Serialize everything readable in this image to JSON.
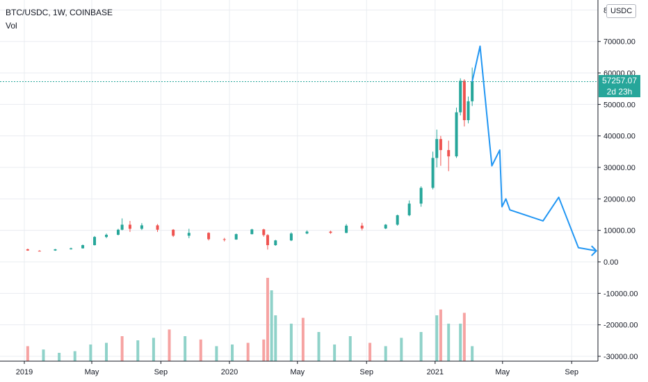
{
  "header": {
    "symbol": "BTC/USDC, 1W, COINBASE",
    "volume_label": "Vol",
    "currency": "USDC"
  },
  "last_price": {
    "value": "57257.07",
    "countdown": "2d 23h"
  },
  "colors": {
    "up": "#26a69a",
    "down": "#ef5350",
    "vol_up": "#8fd2c9",
    "vol_down": "#f6a3a2",
    "projection": "#2196f3",
    "grid": "#e9ecf1",
    "price_line": "#26a69a"
  },
  "chart_data": {
    "type": "candlestick",
    "title": "BTC/USDC, 1W, COINBASE",
    "x_axis": {
      "ticks": [
        "2019",
        "May",
        "Sep",
        "2020",
        "May",
        "Sep",
        "2021",
        "May",
        "Sep"
      ]
    },
    "y_axis": {
      "range": [
        -30000,
        80000
      ],
      "ticks": [
        "70000.00",
        "60000.00",
        "50000.00",
        "40000.00",
        "30000.00",
        "20000.00",
        "10000.00",
        "0.00",
        "-10000.00",
        "-20000.00",
        "-30000.00"
      ],
      "partial_top_tick": "80000.00"
    },
    "grid": true,
    "candles": [
      {
        "t": "2019-01-07",
        "o": 4000,
        "h": 4200,
        "l": 3500,
        "c": 3600
      },
      {
        "t": "2019-01-28",
        "o": 3500,
        "h": 3700,
        "l": 3300,
        "c": 3400
      },
      {
        "t": "2019-02-25",
        "o": 3600,
        "h": 4100,
        "l": 3500,
        "c": 4000
      },
      {
        "t": "2019-03-25",
        "o": 4000,
        "h": 4500,
        "l": 3900,
        "c": 4300
      },
      {
        "t": "2019-04-15",
        "o": 4300,
        "h": 5500,
        "l": 4200,
        "c": 5300
      },
      {
        "t": "2019-05-06",
        "o": 5300,
        "h": 8200,
        "l": 5200,
        "c": 7900
      },
      {
        "t": "2019-05-27",
        "o": 7900,
        "h": 9000,
        "l": 7500,
        "c": 8600
      },
      {
        "t": "2019-06-17",
        "o": 8600,
        "h": 10500,
        "l": 8400,
        "c": 10200
      },
      {
        "t": "2019-06-24",
        "o": 10200,
        "h": 13800,
        "l": 10000,
        "c": 11800
      },
      {
        "t": "2019-07-08",
        "o": 11800,
        "h": 13000,
        "l": 9500,
        "c": 10500
      },
      {
        "t": "2019-07-29",
        "o": 10500,
        "h": 12300,
        "l": 10100,
        "c": 11600
      },
      {
        "t": "2019-08-26",
        "o": 11600,
        "h": 12000,
        "l": 9500,
        "c": 10200
      },
      {
        "t": "2019-09-23",
        "o": 10200,
        "h": 10400,
        "l": 7900,
        "c": 8300
      },
      {
        "t": "2019-10-21",
        "o": 8300,
        "h": 10500,
        "l": 7500,
        "c": 9200
      },
      {
        "t": "2019-11-25",
        "o": 9200,
        "h": 9400,
        "l": 6800,
        "c": 7200
      },
      {
        "t": "2019-12-23",
        "o": 7200,
        "h": 7600,
        "l": 6500,
        "c": 7100
      },
      {
        "t": "2020-01-13",
        "o": 7100,
        "h": 9000,
        "l": 7000,
        "c": 8800
      },
      {
        "t": "2020-02-10",
        "o": 8800,
        "h": 10500,
        "l": 8700,
        "c": 10300
      },
      {
        "t": "2020-03-02",
        "o": 10300,
        "h": 10500,
        "l": 8000,
        "c": 8500
      },
      {
        "t": "2020-03-09",
        "o": 8500,
        "h": 8800,
        "l": 3900,
        "c": 5300
      },
      {
        "t": "2020-03-23",
        "o": 5300,
        "h": 7000,
        "l": 5100,
        "c": 6800
      },
      {
        "t": "2020-04-20",
        "o": 6800,
        "h": 9400,
        "l": 6600,
        "c": 9000
      },
      {
        "t": "2020-05-18",
        "o": 9000,
        "h": 10000,
        "l": 8800,
        "c": 9600
      },
      {
        "t": "2020-06-29",
        "o": 9600,
        "h": 9900,
        "l": 8900,
        "c": 9200
      },
      {
        "t": "2020-07-27",
        "o": 9200,
        "h": 12000,
        "l": 9100,
        "c": 11500
      },
      {
        "t": "2020-08-24",
        "o": 11500,
        "h": 12400,
        "l": 10000,
        "c": 10600
      },
      {
        "t": "2020-10-05",
        "o": 10600,
        "h": 12000,
        "l": 10400,
        "c": 11800
      },
      {
        "t": "2020-10-26",
        "o": 11800,
        "h": 15000,
        "l": 11500,
        "c": 14800
      },
      {
        "t": "2020-11-16",
        "o": 14800,
        "h": 19500,
        "l": 14500,
        "c": 18500
      },
      {
        "t": "2020-12-07",
        "o": 18500,
        "h": 24000,
        "l": 17500,
        "c": 23500
      },
      {
        "t": "2020-12-28",
        "o": 23500,
        "h": 35000,
        "l": 23000,
        "c": 33000
      },
      {
        "t": "2021-01-04",
        "o": 33000,
        "h": 42000,
        "l": 30000,
        "c": 39000
      },
      {
        "t": "2021-01-11",
        "o": 39000,
        "h": 40000,
        "l": 30500,
        "c": 35500
      },
      {
        "t": "2021-01-25",
        "o": 35500,
        "h": 38500,
        "l": 28800,
        "c": 33500
      },
      {
        "t": "2021-02-08",
        "o": 33500,
        "h": 49000,
        "l": 33000,
        "c": 47500
      },
      {
        "t": "2021-02-15",
        "o": 47500,
        "h": 58300,
        "l": 46500,
        "c": 57500
      },
      {
        "t": "2021-02-22",
        "o": 57500,
        "h": 58000,
        "l": 43000,
        "c": 45000
      },
      {
        "t": "2021-03-01",
        "o": 45000,
        "h": 52500,
        "l": 44000,
        "c": 51000
      },
      {
        "t": "2021-03-08",
        "o": 51000,
        "h": 61700,
        "l": 49500,
        "c": 57257
      }
    ],
    "volume": [
      {
        "t": "2019-01-07",
        "v": 18,
        "up": false
      },
      {
        "t": "2019-02-04",
        "v": 14,
        "up": true
      },
      {
        "t": "2019-03-04",
        "v": 10,
        "up": true
      },
      {
        "t": "2019-04-01",
        "v": 12,
        "up": true
      },
      {
        "t": "2019-04-29",
        "v": 20,
        "up": true
      },
      {
        "t": "2019-05-27",
        "v": 22,
        "up": true
      },
      {
        "t": "2019-06-24",
        "v": 30,
        "up": false
      },
      {
        "t": "2019-07-22",
        "v": 25,
        "up": true
      },
      {
        "t": "2019-08-19",
        "v": 28,
        "up": true
      },
      {
        "t": "2019-09-16",
        "v": 38,
        "up": false
      },
      {
        "t": "2019-10-14",
        "v": 30,
        "up": true
      },
      {
        "t": "2019-11-11",
        "v": 26,
        "up": false
      },
      {
        "t": "2019-12-09",
        "v": 18,
        "up": true
      },
      {
        "t": "2020-01-06",
        "v": 20,
        "up": true
      },
      {
        "t": "2020-02-03",
        "v": 22,
        "up": false
      },
      {
        "t": "2020-03-02",
        "v": 26,
        "up": false
      },
      {
        "t": "2020-03-09",
        "v": 100,
        "up": false
      },
      {
        "t": "2020-03-16",
        "v": 85,
        "up": true
      },
      {
        "t": "2020-03-23",
        "v": 55,
        "up": true
      },
      {
        "t": "2020-04-20",
        "v": 45,
        "up": true
      },
      {
        "t": "2020-05-11",
        "v": 52,
        "up": false
      },
      {
        "t": "2020-06-08",
        "v": 35,
        "up": true
      },
      {
        "t": "2020-07-06",
        "v": 20,
        "up": true
      },
      {
        "t": "2020-08-03",
        "v": 30,
        "up": true
      },
      {
        "t": "2020-09-07",
        "v": 22,
        "up": false
      },
      {
        "t": "2020-10-05",
        "v": 18,
        "up": true
      },
      {
        "t": "2020-11-02",
        "v": 28,
        "up": true
      },
      {
        "t": "2020-12-07",
        "v": 35,
        "up": true
      },
      {
        "t": "2021-01-04",
        "v": 55,
        "up": true
      },
      {
        "t": "2021-01-11",
        "v": 62,
        "up": false
      },
      {
        "t": "2021-01-25",
        "v": 45,
        "up": true
      },
      {
        "t": "2021-02-15",
        "v": 45,
        "up": true
      },
      {
        "t": "2021-02-22",
        "v": 58,
        "up": false
      },
      {
        "t": "2021-03-08",
        "v": 18,
        "up": true
      }
    ],
    "projection": [
      {
        "t": "2021-03-08",
        "y": 57257
      },
      {
        "t": "2021-03-22",
        "y": 68500
      },
      {
        "t": "2021-04-12",
        "y": 30500
      },
      {
        "t": "2021-04-26",
        "y": 35500
      },
      {
        "t": "2021-04-30",
        "y": 17500
      },
      {
        "t": "2021-05-07",
        "y": 20000
      },
      {
        "t": "2021-05-14",
        "y": 16500
      },
      {
        "t": "2021-07-12",
        "y": 13000
      },
      {
        "t": "2021-08-09",
        "y": 20500
      },
      {
        "t": "2021-09-13",
        "y": 4500
      },
      {
        "t": "2021-10-15",
        "y": 3500
      }
    ]
  }
}
